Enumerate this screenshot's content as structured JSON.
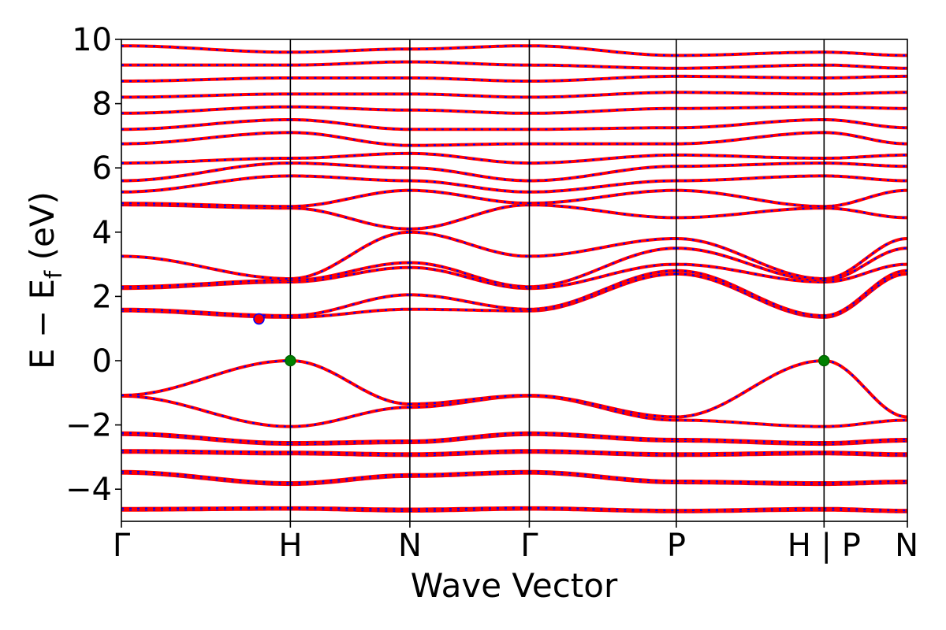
{
  "chart_data": {
    "type": "line",
    "title": "",
    "xlabel": "Wave Vector",
    "ylabel_main": "E − E",
    "ylabel_sub": "f",
    "ylabel_unit": " (eV)",
    "ylim": [
      -5,
      10
    ],
    "yticks": [
      -4,
      -2,
      0,
      2,
      4,
      6,
      8,
      10
    ],
    "ytick_labels": [
      "−4",
      "−2",
      "0",
      "2",
      "4",
      "6",
      "8",
      "10"
    ],
    "xlim": [
      0,
      1
    ],
    "kpoints": [
      {
        "label": "Γ",
        "x": 0.0
      },
      {
        "label": "H",
        "x": 0.215
      },
      {
        "label": "N",
        "x": 0.367
      },
      {
        "label": "Γ",
        "x": 0.519
      },
      {
        "label": "P",
        "x": 0.706
      },
      {
        "label": "H | P",
        "x": 0.894
      },
      {
        "label": "N",
        "x": 1.0
      }
    ],
    "segments": [
      {
        "from": "Γ",
        "to": "H",
        "x0": 0.0,
        "x1": 0.215
      },
      {
        "from": "H",
        "to": "N",
        "x0": 0.215,
        "x1": 0.367
      },
      {
        "from": "N",
        "to": "Γ",
        "x0": 0.367,
        "x1": 0.519
      },
      {
        "from": "Γ",
        "to": "P",
        "x0": 0.519,
        "x1": 0.706
      },
      {
        "from": "P",
        "to": "H",
        "x0": 0.706,
        "x1": 0.894
      },
      {
        "from": "P",
        "to": "N",
        "x0": 0.894,
        "x1": 1.0
      }
    ],
    "bands_at_kpoints": {
      "columns": [
        "Γ",
        "H",
        "N",
        "Γ",
        "P",
        "H",
        "P",
        "N"
      ],
      "bands": [
        [
          -4.65,
          -4.62,
          -4.68,
          -4.62,
          -4.7,
          -4.65,
          -4.7,
          -4.68
        ],
        [
          -4.6,
          -4.58,
          -4.62,
          -4.58,
          -4.66,
          -4.6,
          -4.66,
          -4.62
        ],
        [
          -3.5,
          -3.85,
          -3.6,
          -3.5,
          -3.8,
          -3.85,
          -3.8,
          -3.6
        ],
        [
          -3.45,
          -3.8,
          -3.55,
          -3.45,
          -3.75,
          -3.8,
          -3.75,
          -3.55
        ],
        [
          -2.85,
          -2.9,
          -2.95,
          -2.85,
          -2.95,
          -2.9,
          -2.95,
          -2.95
        ],
        [
          -2.8,
          -2.85,
          -2.9,
          -2.8,
          -2.9,
          -2.85,
          -2.9,
          -2.9
        ],
        [
          -2.3,
          -2.6,
          -2.55,
          -2.3,
          -2.5,
          -2.6,
          -2.5,
          -2.55
        ],
        [
          -2.25,
          -2.55,
          -2.5,
          -2.25,
          -2.45,
          -2.55,
          -2.45,
          -2.5
        ],
        [
          -1.1,
          -2.05,
          -1.45,
          -1.1,
          -1.85,
          -2.05,
          -1.85,
          -1.45
        ],
        [
          -1.08,
          0.0,
          -1.35,
          -1.08,
          -1.75,
          0.0,
          -1.75,
          -1.35
        ],
        [
          1.55,
          1.35,
          1.6,
          1.55,
          2.7,
          1.35,
          2.7,
          1.6
        ],
        [
          1.6,
          1.4,
          2.05,
          1.6,
          2.8,
          1.4,
          2.8,
          2.05
        ],
        [
          2.25,
          2.45,
          2.9,
          2.25,
          3.0,
          2.45,
          3.0,
          2.9
        ],
        [
          2.3,
          2.5,
          3.05,
          2.3,
          3.5,
          2.5,
          3.5,
          3.05
        ],
        [
          3.25,
          2.55,
          4.0,
          3.25,
          3.8,
          2.55,
          3.8,
          4.0
        ],
        [
          4.85,
          4.75,
          4.1,
          4.85,
          4.45,
          4.75,
          4.45,
          4.1
        ],
        [
          4.9,
          4.8,
          5.3,
          4.9,
          5.3,
          4.8,
          5.3,
          5.3
        ],
        [
          5.25,
          5.75,
          5.6,
          5.25,
          5.6,
          5.75,
          5.6,
          5.6
        ],
        [
          5.6,
          6.15,
          6.0,
          5.6,
          6.05,
          6.15,
          6.05,
          6.0
        ],
        [
          6.15,
          6.3,
          6.45,
          6.15,
          6.4,
          6.3,
          6.4,
          6.45
        ],
        [
          6.75,
          7.1,
          6.7,
          6.75,
          6.75,
          7.1,
          6.75,
          6.7
        ],
        [
          7.2,
          7.5,
          7.2,
          7.2,
          7.25,
          7.5,
          7.25,
          7.2
        ],
        [
          7.7,
          7.9,
          7.8,
          7.7,
          7.85,
          7.9,
          7.85,
          7.8
        ],
        [
          8.2,
          8.3,
          8.3,
          8.2,
          8.35,
          8.3,
          8.35,
          8.3
        ],
        [
          8.7,
          8.8,
          8.8,
          8.7,
          8.85,
          8.8,
          8.85,
          8.8
        ],
        [
          9.2,
          9.2,
          9.3,
          9.2,
          9.1,
          9.2,
          9.1,
          9.3
        ],
        [
          9.8,
          9.6,
          9.7,
          9.8,
          9.5,
          9.6,
          9.5,
          9.7
        ]
      ]
    },
    "markers": [
      {
        "kind": "VBM",
        "x": 0.215,
        "y": 0.0,
        "color": "#008000"
      },
      {
        "kind": "VBM",
        "x": 0.894,
        "y": 0.0,
        "color": "#008000"
      },
      {
        "kind": "CBM",
        "x": 0.175,
        "y": 1.3,
        "color": "#ff0000"
      }
    ],
    "colors": {
      "solid_line": "#ff0000",
      "dashed_line": "#0000ff",
      "vertical_line": "#000000"
    },
    "grid": false,
    "legend": "none"
  }
}
